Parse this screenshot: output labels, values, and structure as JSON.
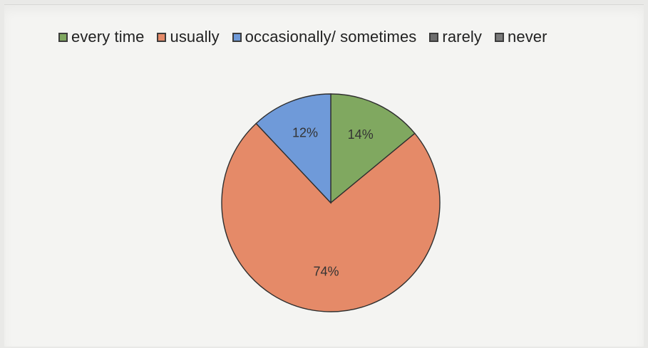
{
  "chart_data": {
    "type": "pie",
    "title": "",
    "legend_position": "top",
    "categories": [
      "every time",
      "usually",
      "occasionally/ sometimes",
      "rarely",
      "never"
    ],
    "values": [
      14,
      74,
      12,
      0,
      0
    ],
    "labels": [
      "14%",
      "74%",
      "12%",
      "",
      ""
    ],
    "colors": [
      "#80a860",
      "#e58a68",
      "#6f9ad9",
      "#6e6e6e",
      "#7a7a7a"
    ],
    "start_angle_deg": 0,
    "direction": "clockwise"
  }
}
